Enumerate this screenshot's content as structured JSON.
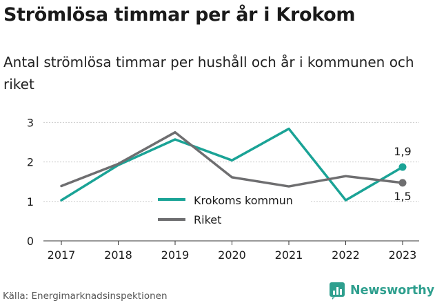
{
  "title": "Strömlösa timmar per år i Krokom",
  "subtitle": "Antal strömlösa timmar per hushåll och år i kommunen och riket",
  "source": "Källa: Energimarknadsinspektionen",
  "brand": "Newsworthy",
  "colors": {
    "krokom": "#1aa396",
    "riket": "#6e6e70",
    "axis": "#333333",
    "grid": "#cccccc",
    "brand": "#2e9f8e"
  },
  "chart_data": {
    "type": "line",
    "x": [
      2017,
      2018,
      2019,
      2020,
      2021,
      2022,
      2023
    ],
    "xticks": [
      "2017",
      "2018",
      "2019",
      "2020",
      "2021",
      "2022",
      "2023"
    ],
    "yticks": [
      "0",
      "1",
      "2",
      "3"
    ],
    "ylim": [
      0,
      3
    ],
    "series": [
      {
        "name": "Krokoms kommun",
        "values": [
          1.03,
          1.92,
          2.57,
          2.04,
          2.84,
          1.03,
          1.87
        ],
        "end_label": "1,9"
      },
      {
        "name": "Riket",
        "values": [
          1.39,
          1.95,
          2.75,
          1.61,
          1.38,
          1.64,
          1.47
        ],
        "end_label": "1,5"
      }
    ],
    "legend": "center"
  }
}
